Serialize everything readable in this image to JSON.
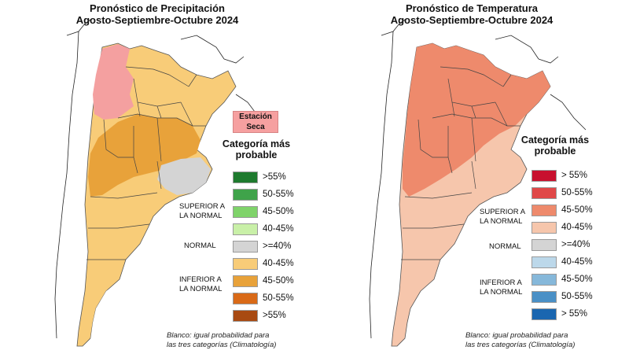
{
  "precip": {
    "title_line1": "Pronóstico de Precipitación",
    "title_line2": "Agosto-Septiembre-Octubre 2024",
    "dry_label_line1": "Estación",
    "dry_label_line2": "Seca",
    "legend_heading_line1": "Categoría más",
    "legend_heading_line2": "probable",
    "items": [
      {
        "label": ">55%",
        "color": "#1e7a2e"
      },
      {
        "label": "50-55%",
        "color": "#3fa34a"
      },
      {
        "label": "45-50%",
        "color": "#7fd36a"
      },
      {
        "label": "40-45%",
        "color": "#c9f0a8"
      },
      {
        "label": ">=40%",
        "color": "#d4d4d4"
      },
      {
        "label": "40-45%",
        "color": "#f8cc78"
      },
      {
        "label": "45-50%",
        "color": "#e8a23a"
      },
      {
        "label": "50-55%",
        "color": "#d96a18"
      },
      {
        "label": ">55%",
        "color": "#a84a12"
      }
    ],
    "cat_superior_1": "SUPERIOR A",
    "cat_superior_2": "LA NORMAL",
    "cat_normal": "NORMAL",
    "cat_inferior_1": "INFERIOR A",
    "cat_inferior_2": "LA NORMAL",
    "note_line1": "Blanco: igual probabilidad para",
    "note_line2": "las tres categorías (Climatología)"
  },
  "temp": {
    "title_line1": "Pronóstico de Temperatura",
    "title_line2": "Agosto-Septiembre-Octubre 2024",
    "legend_heading_line1": "Categoría más",
    "legend_heading_line2": "probable",
    "items": [
      {
        "label": "> 55%",
        "color": "#c8102e"
      },
      {
        "label": "50-55%",
        "color": "#e04848"
      },
      {
        "label": "45-50%",
        "color": "#ee8a6c"
      },
      {
        "label": "40-45%",
        "color": "#f6c6ac"
      },
      {
        "label": ">=40%",
        "color": "#d4d4d4"
      },
      {
        "label": "40-45%",
        "color": "#bcd8ea"
      },
      {
        "label": "45-50%",
        "color": "#86b8da"
      },
      {
        "label": "50-55%",
        "color": "#4a90c6"
      },
      {
        "label": "> 55%",
        "color": "#1a66b0"
      }
    ],
    "cat_superior_1": "SUPERIOR A",
    "cat_superior_2": "LA NORMAL",
    "cat_normal": "NORMAL",
    "cat_inferior_1": "INFERIOR A",
    "cat_inferior_2": "LA NORMAL",
    "note_line1": "Blanco: igual probabilidad para",
    "note_line2": "las tres categorías (Climatología)"
  }
}
